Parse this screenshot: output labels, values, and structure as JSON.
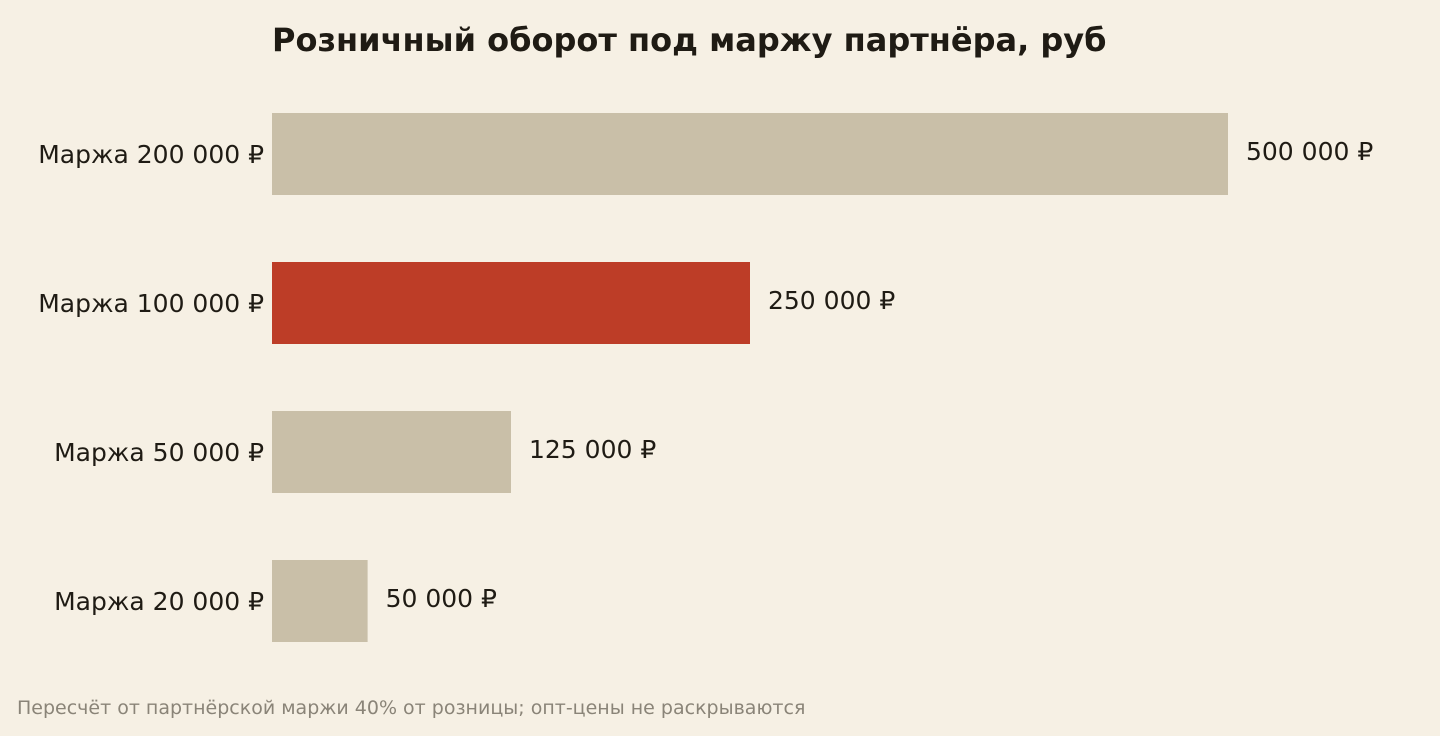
{
  "chart_data": {
    "type": "bar",
    "orientation": "horizontal",
    "title": "Розничный оборот под маржу партнёра, руб",
    "xlabel": "",
    "ylabel": "",
    "grid": false,
    "xlim": [
      0,
      500000
    ],
    "categories": [
      "Маржа 200 000 ₽",
      "Маржа 100 000 ₽",
      "Маржа 50 000 ₽",
      "Маржа 20 000 ₽"
    ],
    "values": [
      500000,
      250000,
      125000,
      50000
    ],
    "value_labels": [
      "500 000 ₽",
      "250 000 ₽",
      "125 000 ₽",
      "50 000 ₽"
    ],
    "highlight_index": 1,
    "colors": {
      "background": "#f6f0e4",
      "bar": "#c9bfa8",
      "highlight": "#bd3d27",
      "text": "#1f1b14",
      "footnote": "#8a8478"
    }
  },
  "footnote": "Пересчёт от партнёрской маржи 40% от розницы; опт-цены не раскрываются"
}
